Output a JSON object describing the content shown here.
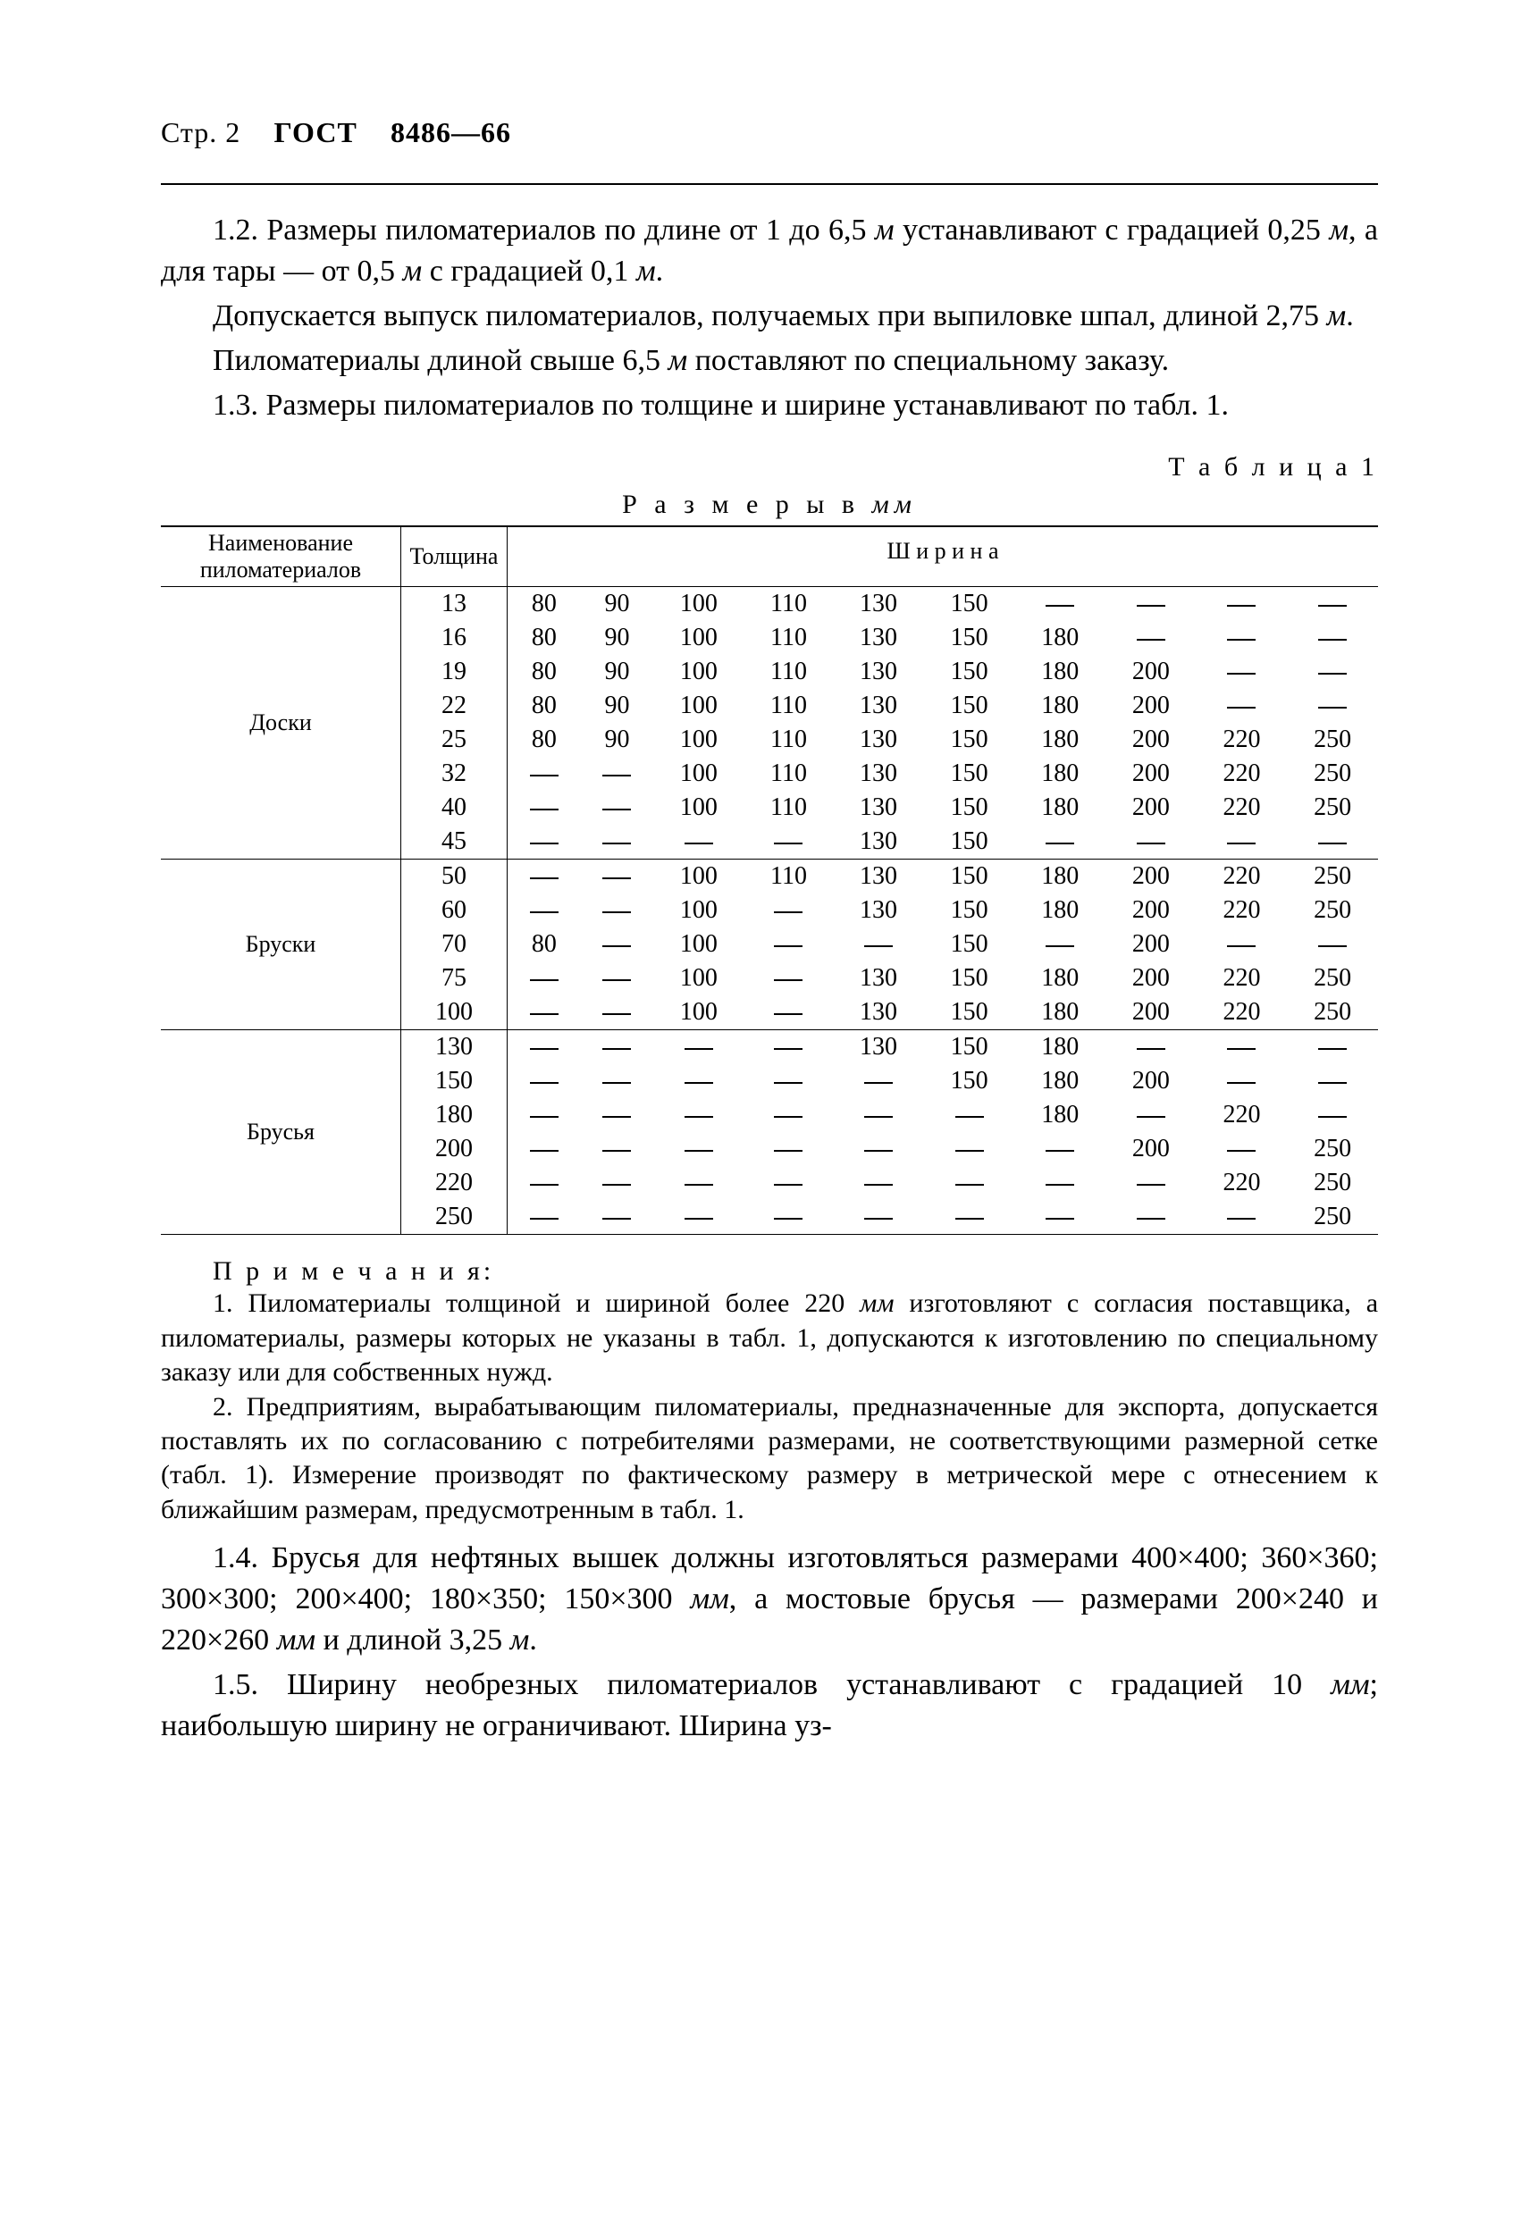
{
  "header": {
    "page": "Стр. 2",
    "std_pre": "ГОСТ",
    "std_num": "8486—66"
  },
  "paras": {
    "p1": "1.2. Размеры пиломатериалов по длине от 1 до 6,5 ",
    "p1i": "м",
    "p1b": " устанавливают с градацией 0,25 ",
    "p1c": ", а для тары — от 0,5 ",
    "p1d": " с градацией 0,1 ",
    "p1e": ".",
    "p2a": "Допускается выпуск пиломатериалов, получаемых при выпиловке шпал, длиной 2,75 ",
    "p2b": ".",
    "p3a": "Пиломатериалы длиной свыше 6,5 ",
    "p3b": " поставляют по специальному заказу.",
    "p4": "1.3. Размеры пиломатериалов по толщине и ширине устанавливают по табл. 1.",
    "p5a": "1.4. Брусья для нефтяных вышек должны изготовляться размерами 400×400; 360×360; 300×300; 200×400; 180×350; 150×300 ",
    "p5b": ", а мостовые брусья — размерами 200×240 и 220×260 ",
    "p5c": " и длиной 3,25 ",
    "p5d": ".",
    "p6a": "1.5. Ширину необрезных пиломатериалов устанавливают с градацией 10 ",
    "p6b": "; наибольшую ширину не ограничивают. Ширина уз-"
  },
  "table": {
    "label": "Т а б л и ц а  1",
    "title_a": "Р а з м е р ы  в  ",
    "title_i": "мм",
    "head_name": "Наименование пиломатериалов",
    "head_th": "Толщина",
    "head_width_spaced": "Ш и р и н а",
    "groups": [
      {
        "name": "Доски",
        "rows": [
          {
            "t": "13",
            "w": [
              "80",
              "90",
              "100",
              "110",
              "130",
              "150",
              "—",
              "—",
              "—",
              "—"
            ]
          },
          {
            "t": "16",
            "w": [
              "80",
              "90",
              "100",
              "110",
              "130",
              "150",
              "180",
              "—",
              "—",
              "—"
            ]
          },
          {
            "t": "19",
            "w": [
              "80",
              "90",
              "100",
              "110",
              "130",
              "150",
              "180",
              "200",
              "—",
              "—"
            ]
          },
          {
            "t": "22",
            "w": [
              "80",
              "90",
              "100",
              "110",
              "130",
              "150",
              "180",
              "200",
              "—",
              "—"
            ]
          },
          {
            "t": "25",
            "w": [
              "80",
              "90",
              "100",
              "110",
              "130",
              "150",
              "180",
              "200",
              "220",
              "250"
            ]
          },
          {
            "t": "32",
            "w": [
              "—",
              "—",
              "100",
              "110",
              "130",
              "150",
              "180",
              "200",
              "220",
              "250"
            ]
          },
          {
            "t": "40",
            "w": [
              "—",
              "—",
              "100",
              "110",
              "130",
              "150",
              "180",
              "200",
              "220",
              "250"
            ]
          },
          {
            "t": "45",
            "w": [
              "—",
              "—",
              "—",
              "—",
              "130",
              "150",
              "—",
              "—",
              "—",
              "—"
            ]
          }
        ]
      },
      {
        "name": "Бруски",
        "rows": [
          {
            "t": "50",
            "w": [
              "—",
              "—",
              "100",
              "110",
              "130",
              "150",
              "180",
              "200",
              "220",
              "250"
            ]
          },
          {
            "t": "60",
            "w": [
              "—",
              "—",
              "100",
              "—",
              "130",
              "150",
              "180",
              "200",
              "220",
              "250"
            ]
          },
          {
            "t": "70",
            "w": [
              "80",
              "—",
              "100",
              "—",
              "—",
              "150",
              "—",
              "200",
              "—",
              "—"
            ]
          },
          {
            "t": "75",
            "w": [
              "—",
              "—",
              "100",
              "—",
              "130",
              "150",
              "180",
              "200",
              "220",
              "250"
            ]
          },
          {
            "t": "100",
            "w": [
              "—",
              "—",
              "100",
              "—",
              "130",
              "150",
              "180",
              "200",
              "220",
              "250"
            ]
          }
        ]
      },
      {
        "name": "Брусья",
        "rows": [
          {
            "t": "130",
            "w": [
              "—",
              "—",
              "—",
              "—",
              "130",
              "150",
              "180",
              "—",
              "—",
              "—"
            ]
          },
          {
            "t": "150",
            "w": [
              "—",
              "—",
              "—",
              "—",
              "—",
              "150",
              "180",
              "200",
              "—",
              "—"
            ]
          },
          {
            "t": "180",
            "w": [
              "—",
              "—",
              "—",
              "—",
              "—",
              "—",
              "180",
              "—",
              "220",
              "—"
            ]
          },
          {
            "t": "200",
            "w": [
              "—",
              "—",
              "—",
              "—",
              "—",
              "—",
              "—",
              "200",
              "—",
              "250"
            ]
          },
          {
            "t": "220",
            "w": [
              "—",
              "—",
              "—",
              "—",
              "—",
              "—",
              "—",
              "—",
              "220",
              "250"
            ]
          },
          {
            "t": "250",
            "w": [
              "—",
              "—",
              "—",
              "—",
              "—",
              "—",
              "—",
              "—",
              "—",
              "250"
            ]
          }
        ]
      }
    ]
  },
  "notes": {
    "heading": "П р и м е ч а н и я:",
    "n1a": "1. Пиломатериалы толщиной и шириной более 220 ",
    "n1b": " изготовляют с согласия поставщика, а пиломатериалы, размеры которых не указаны в табл. 1, допускаются к изготовлению по специальному заказу или для собственных нужд.",
    "n2": "2. Предприятиям, вырабатывающим пиломатериалы, предназначенные для экспорта, допускается поставлять их по согласованию с потребителями размерами, не соответствующими размерной сетке (табл. 1). Измерение производят по фактическому размеру в метрической мере с отнесением к ближайшим размерам, предусмотренным в табл. 1."
  },
  "units": {
    "m": "м",
    "mm": "мм"
  }
}
